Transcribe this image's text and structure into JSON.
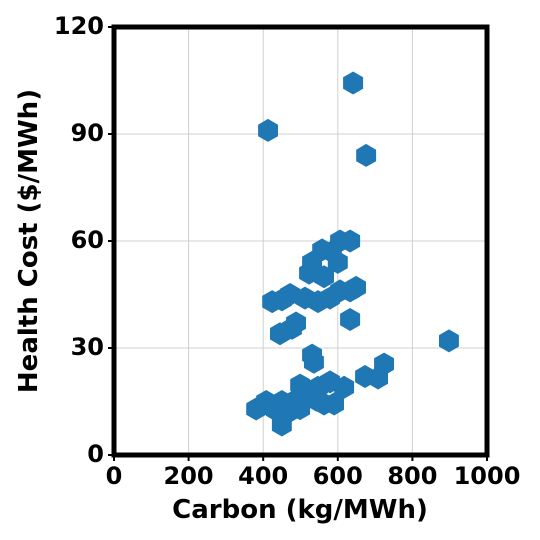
{
  "chart_data": {
    "type": "scatter",
    "xlabel": "Carbon (kg/MWh)",
    "ylabel": "Health Cost ($/MWh)",
    "x": [
      641,
      413,
      676,
      898,
      633,
      606,
      558,
      584,
      531,
      600,
      523,
      563,
      606,
      649,
      633,
      579,
      547,
      512,
      472,
      424,
      450,
      488,
      477,
      445,
      633,
      531,
      536,
      724,
      708,
      673,
      617,
      579,
      547,
      515,
      488,
      477,
      450,
      408,
      381,
      456,
      450,
      499,
      542,
      563,
      590,
      434,
      499
    ],
    "values": [
      104.3,
      91,
      84,
      32,
      60,
      60,
      57.5,
      57,
      54,
      54,
      51,
      50,
      46,
      47,
      46,
      44,
      43,
      44,
      45,
      43,
      43.5,
      37,
      35.5,
      34,
      38,
      28,
      26,
      25.5,
      21.6,
      22,
      19,
      20.5,
      19,
      17,
      15.4,
      12.6,
      15,
      15,
      12.9,
      12,
      8.4,
      13,
      15.4,
      14.3,
      14.3,
      12.6,
      19.6
    ],
    "color": "#1f77b4",
    "xlim": [
      0,
      1000
    ],
    "xticks": [
      0,
      200,
      400,
      600,
      800,
      1000
    ],
    "ylim": [
      0,
      120
    ],
    "yticks": [
      0,
      30,
      60,
      90,
      120
    ],
    "grid": true
  }
}
